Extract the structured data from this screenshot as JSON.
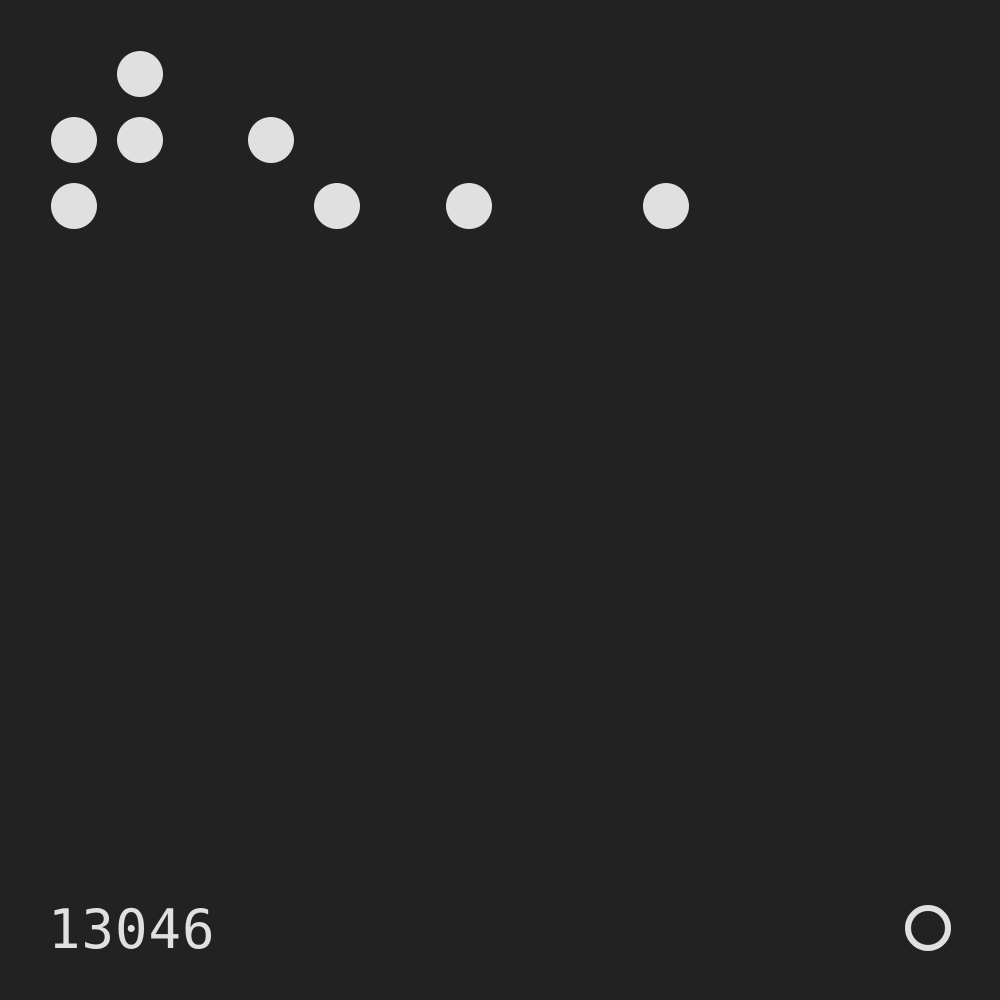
{
  "colors": {
    "background": "#222222",
    "foreground": "#e0e0e0"
  },
  "pattern": {
    "columns": 11,
    "rows": 3,
    "filled_cells": [
      [
        0,
        1
      ],
      [
        1,
        0
      ],
      [
        1,
        1
      ],
      [
        1,
        3
      ],
      [
        2,
        0
      ],
      [
        2,
        4
      ],
      [
        2,
        6
      ],
      [
        2,
        9
      ]
    ]
  },
  "footer": {
    "code": "13046",
    "status_icon": "ring-icon"
  }
}
